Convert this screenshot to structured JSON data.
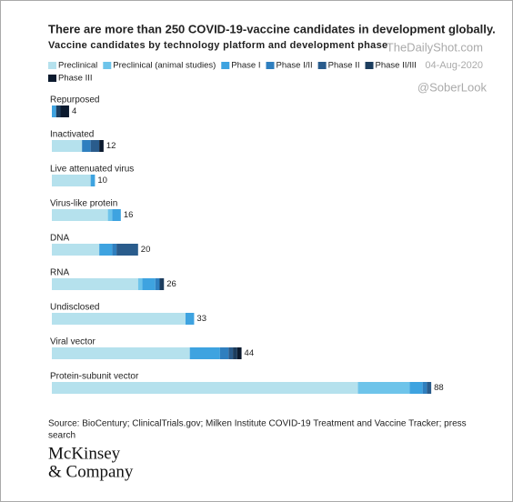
{
  "chart_data": {
    "type": "stacked-bar-horizontal",
    "title": "There are more than 250 COVID-19-vaccine candidates in development globally.",
    "subtitle": "Vaccine candidates by technology platform and development phase",
    "watermarks": [
      "TheDailyShot.com",
      "04-Aug-2020",
      "@SoberLook"
    ],
    "categories": [
      "Repurposed",
      "Inactivated",
      "Live attenuated virus",
      "Virus-like protein",
      "DNA",
      "RNA",
      "Undisclosed",
      "Viral vector",
      "Protein-subunit vector"
    ],
    "totals": [
      4,
      12,
      10,
      16,
      20,
      26,
      33,
      44,
      88
    ],
    "series": [
      {
        "name": "Preclinical",
        "color": "#b5e1ed",
        "values": [
          0,
          7,
          9,
          13,
          11,
          20,
          31,
          32,
          71
        ]
      },
      {
        "name": "Preclinical (animal studies)",
        "color": "#6ec4ea",
        "values": [
          0,
          0,
          0,
          1,
          0,
          1,
          0,
          0,
          12
        ]
      },
      {
        "name": "Phase I",
        "color": "#3ea3e0",
        "values": [
          1,
          0,
          1,
          2,
          3,
          3,
          2,
          7,
          3
        ]
      },
      {
        "name": "Phase I/II",
        "color": "#2f7fbf",
        "values": [
          0,
          2,
          0,
          0,
          1,
          1,
          0,
          2,
          1
        ]
      },
      {
        "name": "Phase II",
        "color": "#2a5c8c",
        "values": [
          0,
          2,
          0,
          0,
          5,
          0,
          0,
          1,
          1
        ]
      },
      {
        "name": "Phase II/III",
        "color": "#1c3d5e",
        "values": [
          1,
          0,
          0,
          0,
          0,
          1,
          0,
          1,
          0
        ]
      },
      {
        "name": "Phase III",
        "color": "#0b1a2e",
        "values": [
          2,
          1,
          0,
          0,
          0,
          0,
          0,
          1,
          0
        ]
      }
    ],
    "source": [
      "Source: BioCentury; ClinicalTrials.gov; Milken Institute COVID-19 Treatment and Vaccine Tracker; press",
      "search"
    ],
    "logo": [
      "McKinsey",
      "& Company"
    ]
  }
}
